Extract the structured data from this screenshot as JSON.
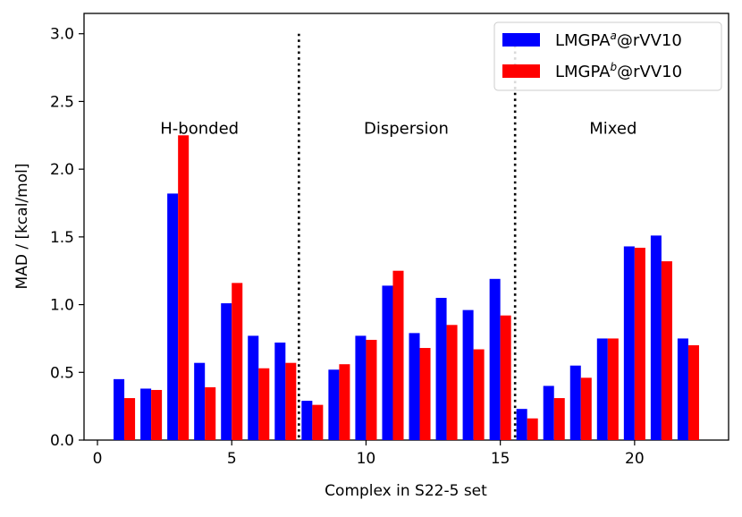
{
  "chart_data": {
    "type": "bar",
    "title": "",
    "xlabel": "Complex in S22-5 set",
    "ylabel": "MAD / [kcal/mol]",
    "xlim": [
      -0.5,
      23.5
    ],
    "ylim": [
      0,
      3.15
    ],
    "xticks": [
      0,
      5,
      10,
      15,
      20
    ],
    "xtick_labels": [
      "0",
      "5",
      "10",
      "15",
      "20"
    ],
    "yticks": [
      0.0,
      0.5,
      1.0,
      1.5,
      2.0,
      2.5,
      3.0
    ],
    "ytick_labels": [
      "0.0",
      "0.5",
      "1.0",
      "1.5",
      "2.0",
      "2.5",
      "3.0"
    ],
    "grid": false,
    "legend_position": "top-right",
    "categories": [
      1,
      2,
      3,
      4,
      5,
      6,
      7,
      8,
      9,
      10,
      11,
      12,
      13,
      14,
      15,
      16,
      17,
      18,
      19,
      20,
      21,
      22
    ],
    "series": [
      {
        "name_prefix": "LMGPA",
        "name_superscript": "a",
        "name_suffix": "@rVV10",
        "color": "#0000ff",
        "values": [
          0.45,
          0.38,
          1.82,
          0.57,
          1.01,
          0.77,
          0.72,
          0.29,
          0.52,
          0.77,
          1.14,
          0.79,
          1.05,
          0.96,
          1.19,
          0.23,
          0.4,
          0.55,
          0.75,
          1.43,
          1.51,
          0.75
        ]
      },
      {
        "name_prefix": "LMGPA",
        "name_superscript": "b",
        "name_suffix": "@rVV10",
        "color": "#ff0000",
        "values": [
          0.31,
          0.37,
          2.25,
          0.39,
          1.16,
          0.53,
          0.57,
          0.26,
          0.56,
          0.74,
          1.25,
          0.68,
          0.85,
          0.67,
          0.92,
          0.16,
          0.31,
          0.46,
          0.75,
          1.42,
          1.32,
          0.7
        ]
      }
    ],
    "separators": [
      {
        "x": 7.5,
        "y_top": 3.0
      },
      {
        "x": 15.55,
        "y_top": 3.0
      }
    ],
    "annotations": [
      {
        "text": "H-bonded",
        "x": 3.8,
        "y": 2.3
      },
      {
        "text": "Dispersion",
        "x": 11.5,
        "y": 2.3
      },
      {
        "text": "Mixed",
        "x": 19.2,
        "y": 2.3
      }
    ]
  }
}
